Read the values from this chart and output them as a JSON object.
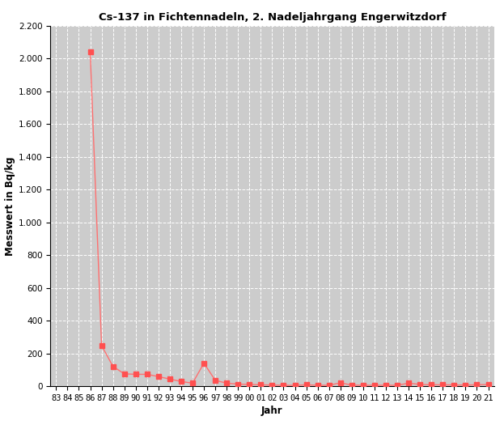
{
  "title": "Cs-137 in Fichtennadeln, 2. Nadeljahrgang Engerwitzdorf",
  "xlabel": "Jahr",
  "ylabel": "Messwert in Bq/kg",
  "year_labels": [
    "83",
    "84",
    "85",
    "86",
    "87",
    "88",
    "89",
    "90",
    "91",
    "92",
    "93",
    "94",
    "95",
    "96",
    "97",
    "98",
    "99",
    "00",
    "01",
    "02",
    "03",
    "04",
    "05",
    "06",
    "07",
    "08",
    "09",
    "10",
    "11",
    "12",
    "13",
    "14",
    "15",
    "16",
    "17",
    "18",
    "19",
    "20",
    "21"
  ],
  "values": [
    null,
    null,
    null,
    2040,
    248,
    120,
    75,
    72,
    72,
    58,
    43,
    28,
    18,
    140,
    35,
    18,
    12,
    10,
    8,
    6,
    5,
    4,
    8,
    5,
    5,
    20,
    6,
    5,
    5,
    5,
    5,
    18,
    10,
    8,
    8,
    7,
    6,
    8,
    10
  ],
  "ylim": [
    0,
    2200
  ],
  "yticks": [
    0,
    200,
    400,
    600,
    800,
    1000,
    1200,
    1400,
    1600,
    1800,
    2000,
    2200
  ],
  "line_color": "#ff7070",
  "marker_color": "#ff5050",
  "bg_color": "#cccccc",
  "grid_color": "#ffffff",
  "title_fontsize": 9.5,
  "axis_label_fontsize": 8.5,
  "tick_fontsize": 7.5
}
